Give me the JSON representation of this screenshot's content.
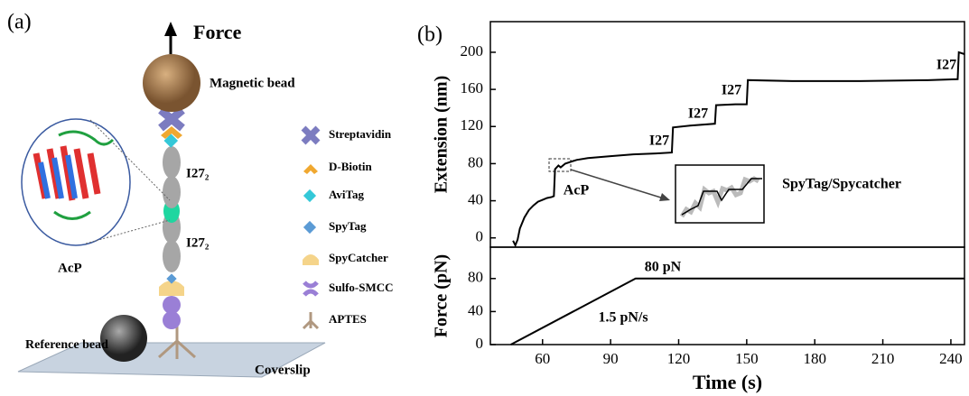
{
  "panel_a": {
    "label": "(a)",
    "force": "Force",
    "magnetic_bead": "Magnetic bead",
    "linker_top": "I27₂",
    "linker_bottom": "I27₂",
    "protein": "AcP",
    "reference_bead": "Reference bead",
    "coverslip": "Coverslip",
    "legend": [
      "Streptavidin",
      "D-Biotin",
      "AviTag",
      "SpyTag",
      "SpyCatcher",
      "Sulfo-SMCC",
      "APTES"
    ]
  },
  "chart_data": [
    {
      "type": "line",
      "panel_label": "(b)",
      "y_label": "Extension (nm)",
      "xlim": [
        37,
        246
      ],
      "ylim": [
        -10,
        233
      ],
      "yticks": [
        0,
        40,
        80,
        120,
        160,
        200
      ],
      "annotations": [
        "I27",
        "I27",
        "I27",
        "I27",
        "AcP",
        "SpyTag/Spycatcher"
      ],
      "x": [
        47,
        48,
        49,
        50,
        52,
        54,
        56,
        58,
        60,
        62,
        64,
        65,
        65.5,
        67,
        68,
        70,
        75,
        80,
        90,
        100,
        110,
        117,
        117.5,
        125,
        136,
        136.5,
        145,
        150,
        150.5,
        170,
        200,
        230,
        243,
        243.5,
        246
      ],
      "series": [
        {
          "color": "#000000",
          "values": [
            -3,
            -8,
            -2,
            10,
            22,
            30,
            35,
            39,
            41,
            43,
            44,
            45,
            74,
            78,
            76,
            80,
            84,
            86,
            88,
            90,
            91,
            92,
            119,
            121,
            123,
            143,
            144,
            144,
            170,
            169,
            169,
            170,
            171,
            200,
            198
          ]
        }
      ]
    },
    {
      "type": "line",
      "y_label": "Force (pN)",
      "x_label": "Time (s)",
      "xlim": [
        37,
        246
      ],
      "ylim": [
        0,
        118
      ],
      "xticks": [
        60,
        90,
        120,
        150,
        180,
        210,
        240
      ],
      "yticks": [
        0,
        40,
        80
      ],
      "annotations": [
        "80 pN",
        "1.5 pN/s"
      ],
      "x": [
        46,
        101,
        246
      ],
      "series": [
        {
          "color": "#000000",
          "values": [
            0,
            80,
            80
          ]
        }
      ]
    }
  ]
}
